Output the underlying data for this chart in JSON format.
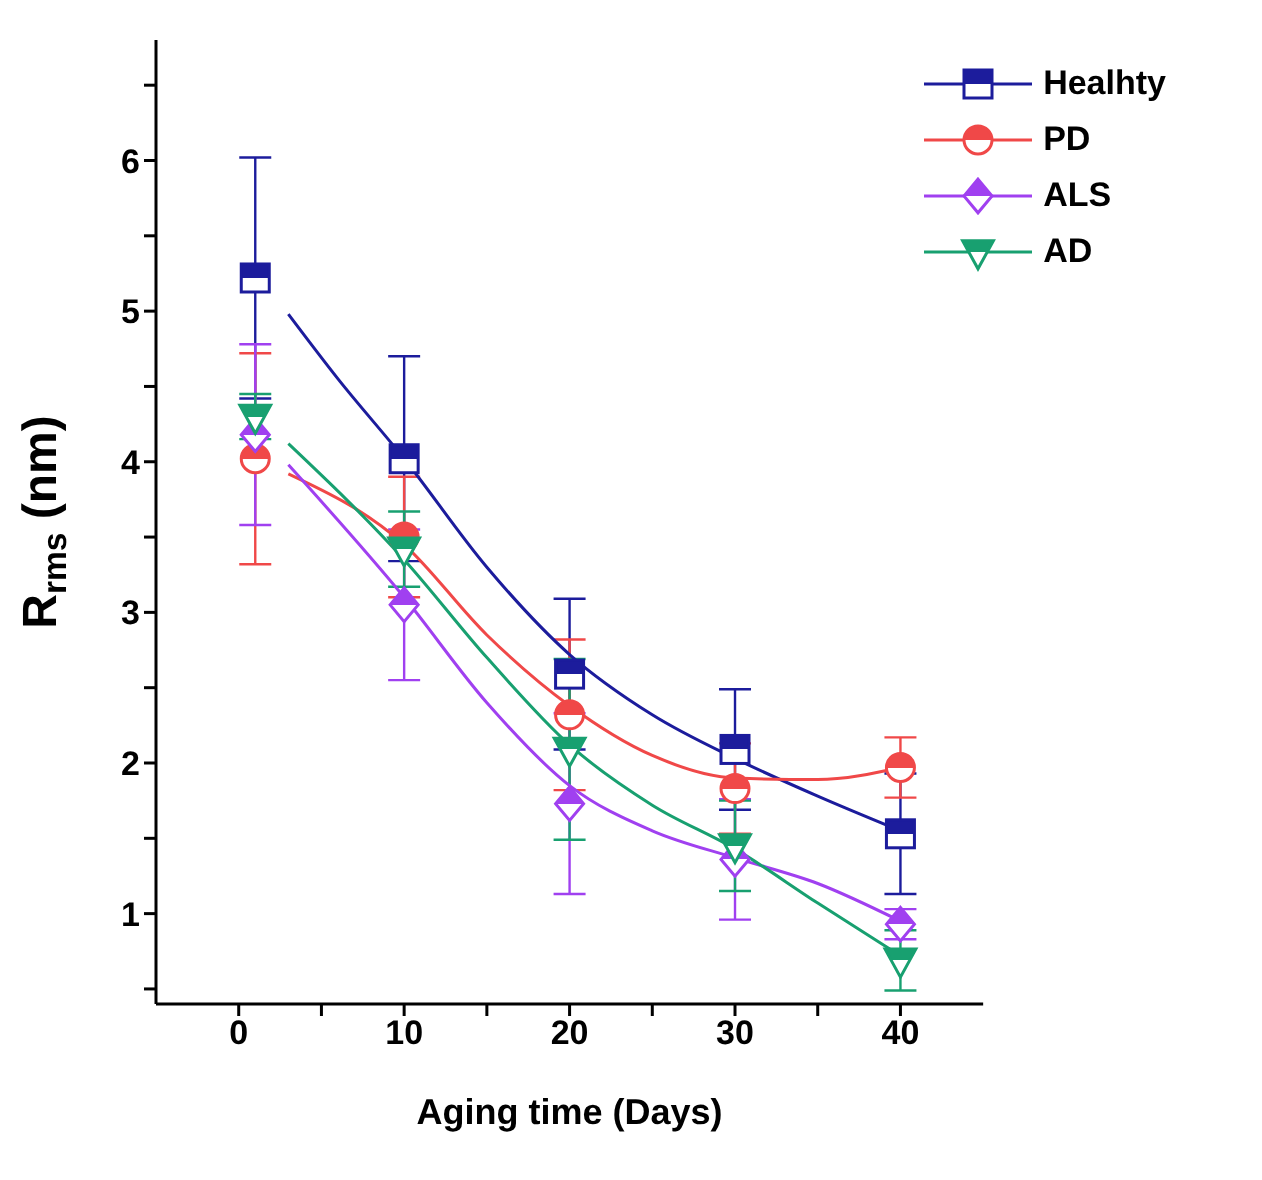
{
  "chart_data": {
    "type": "scatter",
    "xlabel": "Aging time (Days)",
    "ylabel": "R$_{rms}$ (nm)",
    "xlim": [
      -5,
      45
    ],
    "xticks": [
      0,
      {
        "value": 5,
        "label": null
      },
      10,
      {
        "value": 15,
        "label": null
      },
      20,
      {
        "value": 25,
        "label": null
      },
      30,
      {
        "value": 35,
        "label": null
      },
      40
    ],
    "ylim": [
      0.4,
      6.8
    ],
    "yticks": [
      {
        "value": 0.5,
        "label": null
      },
      1,
      {
        "value": 1.5,
        "label": null
      },
      2,
      {
        "value": 2.5,
        "label": null
      },
      3,
      {
        "value": 3.5,
        "label": null
      },
      4,
      {
        "value": 4.5,
        "label": null
      },
      5,
      {
        "value": 5.5,
        "label": null
      },
      6,
      {
        "value": 6.5,
        "label": null
      }
    ],
    "grid": false,
    "legend": "top right",
    "series": [
      {
        "name": "Healhty",
        "color": "#1c1c9c",
        "marker": "square",
        "x": [
          1,
          10,
          20,
          30,
          40
        ],
        "values": [
          5.22,
          4.02,
          2.59,
          2.09,
          1.53
        ],
        "errors": [
          0.8,
          0.68,
          0.5,
          0.4,
          0.4
        ]
      },
      {
        "name": "PD",
        "color": "#f04848",
        "marker": "circle",
        "x": [
          1,
          10,
          20,
          30,
          40
        ],
        "values": [
          4.02,
          3.5,
          2.32,
          1.83,
          1.97
        ],
        "errors": [
          0.7,
          0.4,
          0.5,
          0.3,
          0.2
        ]
      },
      {
        "name": "ALS",
        "color": "#a040f0",
        "marker": "diamond",
        "x": [
          1,
          10,
          20,
          30,
          40
        ],
        "values": [
          4.18,
          3.05,
          1.73,
          1.36,
          0.93
        ],
        "errors": [
          0.6,
          0.5,
          0.6,
          0.4,
          0.1
        ]
      },
      {
        "name": "AD",
        "color": "#18a070",
        "marker": "triangle",
        "x": [
          1,
          10,
          20,
          30,
          40
        ],
        "values": [
          4.3,
          3.42,
          2.09,
          1.45,
          0.69
        ],
        "errors": [
          0.15,
          0.25,
          0.6,
          0.3,
          0.2
        ]
      },
      {
        "type": "line",
        "color": "#1c1c9c",
        "marker": "none",
        "x": [
          3,
          6,
          10,
          15,
          20,
          25,
          30,
          35,
          40
        ],
        "values": [
          4.98,
          4.55,
          4.02,
          3.3,
          2.72,
          2.32,
          2.03,
          1.78,
          1.55
        ]
      },
      {
        "type": "line",
        "color": "#f04848",
        "marker": "none",
        "x": [
          3,
          10,
          15,
          20,
          25,
          30,
          35,
          40
        ],
        "values": [
          3.92,
          3.45,
          2.85,
          2.38,
          2.05,
          1.9,
          1.89,
          1.97
        ]
      },
      {
        "type": "line",
        "color": "#a040f0",
        "marker": "none",
        "x": [
          3,
          10,
          15,
          20,
          25,
          30,
          35,
          40
        ],
        "values": [
          3.98,
          3.1,
          2.4,
          1.85,
          1.55,
          1.37,
          1.2,
          0.95
        ]
      },
      {
        "type": "line",
        "color": "#18a070",
        "marker": "none",
        "x": [
          3,
          10,
          15,
          20,
          25,
          30,
          35,
          40
        ],
        "values": [
          4.12,
          3.35,
          2.7,
          2.12,
          1.72,
          1.43,
          1.07,
          0.72
        ]
      }
    ]
  }
}
